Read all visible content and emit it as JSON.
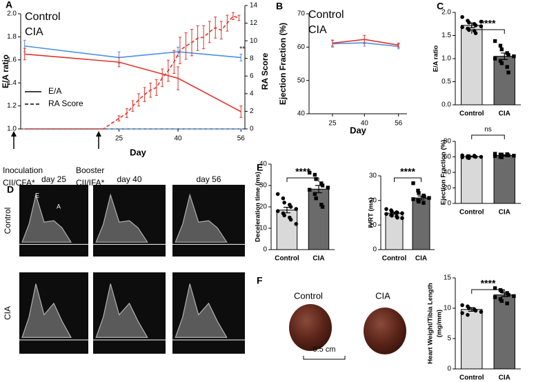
{
  "chart_data": [
    {
      "type": "line",
      "panel": "A",
      "ylabel": "E/A ratio",
      "y2label": "RA Score",
      "xlabel": "Day",
      "xlim": [
        0,
        57
      ],
      "xticks": [
        25,
        40,
        56
      ],
      "ylim": [
        1,
        2
      ],
      "yticks": [
        {
          "value": 1,
          "label": "1.0"
        },
        {
          "value": 1.2,
          "label": "1.2"
        },
        {
          "value": 1.4,
          "label": "1.4"
        },
        {
          "value": 1.6,
          "label": "1.6"
        },
        {
          "value": 1.8,
          "label": "1.8"
        },
        {
          "value": 2,
          "label": "2.0"
        }
      ],
      "y2lim": [
        0,
        14
      ],
      "y2ticks": [
        0,
        2,
        4,
        6,
        8,
        10,
        12,
        14
      ],
      "series": [
        {
          "name": "Control",
          "line": "E/A",
          "color": "#4a90e2",
          "dash": false,
          "axis": "y",
          "x": [
            1,
            25,
            40,
            56
          ],
          "values": [
            1.72,
            1.62,
            1.67,
            1.62
          ],
          "errors": [
            0.05,
            0.05,
            0.04,
            0.03
          ]
        },
        {
          "name": "CIA",
          "line": "E/A",
          "color": "#e0332b",
          "dash": false,
          "axis": "y",
          "x": [
            1,
            25,
            40,
            56
          ],
          "values": [
            1.65,
            1.58,
            1.44,
            1.15
          ],
          "errors": [
            0.05,
            0.04,
            0.1,
            0.05
          ]
        },
        {
          "name": "Control",
          "line": "RA Score",
          "color": "#4a90e2",
          "dash": true,
          "axis": "y2",
          "x": [
            1,
            56
          ],
          "values": [
            0,
            0
          ],
          "errors": [
            0,
            0
          ]
        },
        {
          "name": "CIA",
          "line": "RA Score",
          "color": "#e0332b",
          "dash": true,
          "axis": "y2",
          "x": [
            1,
            21,
            25,
            27,
            28.5,
            30,
            31.5,
            33,
            34.5,
            36,
            37.5,
            39,
            40.5,
            42,
            43.5,
            45,
            46.5,
            48,
            49.5,
            51,
            52.5,
            54,
            55.5
          ],
          "values": [
            0,
            0,
            1.2,
            1.8,
            2.6,
            3.3,
            3.9,
            4.4,
            4.7,
            5.8,
            6.6,
            7.6,
            8.9,
            9.4,
            9.8,
            10.3,
            10.4,
            11.0,
            11.5,
            11.2,
            12.0,
            12.8,
            12.6
          ],
          "errors": [
            0,
            0,
            0.3,
            0.5,
            0.6,
            0.7,
            0.8,
            0.8,
            0.9,
            1.0,
            1.2,
            1.3,
            1.5,
            1.5,
            1.5,
            1.4,
            1.3,
            1.2,
            1.2,
            1.0,
            0.9,
            0.4,
            0.3
          ]
        }
      ],
      "annotation": "**",
      "inoculation": [
        "Inoculation",
        "CII/CFA*"
      ],
      "booster": [
        "Booster",
        "CII/IFA*"
      ]
    },
    {
      "type": "line",
      "panel": "B",
      "ylabel": "Ejection Fraction (%)",
      "xlabel": "Day",
      "xlim": [
        14,
        60
      ],
      "xticks": [
        25,
        40,
        56
      ],
      "ylim": [
        40,
        70
      ],
      "yticks": [
        40,
        50,
        60,
        70
      ],
      "series": [
        {
          "name": "Control",
          "color": "#4a90e2",
          "dash": false,
          "axis": "y",
          "x": [
            25,
            40,
            56
          ],
          "values": [
            61.0,
            61.3,
            60.2
          ],
          "errors": [
            1.0,
            1.0,
            0.7
          ]
        },
        {
          "name": "CIA",
          "color": "#e0332b",
          "dash": false,
          "axis": "y",
          "x": [
            25,
            40,
            56
          ],
          "values": [
            61.2,
            62.3,
            60.6
          ],
          "errors": [
            0.9,
            1.2,
            0.6
          ]
        }
      ]
    },
    {
      "type": "bar",
      "panel": "C",
      "ylabel": "E/A ratio",
      "categories": [
        "Control",
        "CIA"
      ],
      "values": [
        1.72,
        1.05
      ],
      "errors": [
        0.05,
        0.07
      ],
      "colors": [
        "#d9d9d9",
        "#6b6b6b"
      ],
      "ylim": [
        0,
        2
      ],
      "yticks": [
        {
          "value": 0,
          "label": "0.0"
        },
        {
          "value": 0.5,
          "label": "0.5"
        },
        {
          "value": 1,
          "label": "1.0"
        },
        {
          "value": 1.5,
          "label": "1.5"
        },
        {
          "value": 2,
          "label": "2.0"
        }
      ],
      "significance": "****",
      "points": [
        [
          1.9,
          1.82,
          1.78,
          1.75,
          1.72,
          1.7,
          1.68,
          1.65,
          1.62,
          1.6,
          1.55,
          1.8
        ],
        [
          1.38,
          1.28,
          1.2,
          1.12,
          1.08,
          1.05,
          1.0,
          0.95,
          0.9,
          0.82,
          0.7
        ]
      ]
    },
    {
      "type": "bar",
      "ylabel": "Ejection Fraction (%)",
      "categories": [
        "Control",
        "CIA"
      ],
      "values": [
        60.5,
        61.8
      ],
      "errors": [
        0.5,
        0.8
      ],
      "colors": [
        "#d9d9d9",
        "#6b6b6b"
      ],
      "ylim": [
        0,
        80
      ],
      "yticks": [
        0,
        20,
        40,
        60,
        80
      ],
      "significance": "ns",
      "points": [
        [
          62,
          61,
          61,
          60.5,
          60,
          60,
          59.5,
          59,
          58.5,
          61.5
        ],
        [
          64,
          63,
          63,
          62,
          62,
          61.5,
          61,
          60,
          59.5,
          63.5
        ]
      ]
    },
    {
      "type": "bar",
      "ylabel": "Heart Weight/Tibia Length",
      "ylabel_unit": "(mg/mm)",
      "categories": [
        "Control",
        "CIA"
      ],
      "values": [
        9.8,
        12.2
      ],
      "errors": [
        0.3,
        0.3
      ],
      "colors": [
        "#d9d9d9",
        "#6b6b6b"
      ],
      "ylim": [
        0,
        15
      ],
      "yticks": [
        0,
        5,
        10,
        15
      ],
      "significance": "****",
      "points": [
        [
          10.5,
          10.3,
          10.0,
          9.8,
          9.6,
          9.4,
          9.2,
          8.9
        ],
        [
          13.3,
          13.0,
          12.8,
          12.5,
          12.2,
          12.0,
          11.8,
          11.5,
          11.2,
          10.8
        ]
      ]
    },
    {
      "type": "bar",
      "panel": "E",
      "ylabel": "Deceleration time (ms)",
      "categories": [
        "Control",
        "CIA"
      ],
      "values": [
        18.5,
        28.3
      ],
      "errors": [
        1.3,
        1.7
      ],
      "colors": [
        "#d9d9d9",
        "#6b6b6b"
      ],
      "ylim": [
        0,
        40
      ],
      "yticks": [
        0,
        10,
        20,
        30,
        40
      ],
      "significance": "****",
      "points": [
        [
          26,
          24,
          22,
          21,
          20,
          19,
          18,
          17,
          16,
          15,
          14,
          12
        ],
        [
          36,
          35,
          33,
          31,
          30,
          29,
          28,
          26,
          24,
          21,
          20
        ]
      ]
    },
    {
      "type": "bar",
      "ylabel": "IVRT (ms)",
      "categories": [
        "Control",
        "CIA"
      ],
      "values": [
        14.8,
        21.0
      ],
      "errors": [
        0.4,
        0.8
      ],
      "colors": [
        "#d9d9d9",
        "#6b6b6b"
      ],
      "ylim": [
        0,
        30
      ],
      "yticks": [
        0,
        10,
        20,
        30
      ],
      "significance": "****",
      "points": [
        [
          16.5,
          16,
          15.5,
          15.2,
          15,
          14.8,
          14.5,
          14,
          13.8,
          13.5,
          13,
          12.8
        ],
        [
          27,
          24,
          23,
          22,
          21.5,
          21,
          20.5,
          20,
          19.5,
          19
        ]
      ]
    }
  ],
  "echo": {
    "panel": "D",
    "days": [
      "day 25",
      "day 40",
      "day 56"
    ],
    "groups": [
      "Control",
      "CIA"
    ],
    "waves": [
      "E",
      "A"
    ]
  },
  "photo": {
    "panel": "F",
    "groups": [
      "Control",
      "CIA"
    ],
    "scale": "0.5 cm"
  }
}
